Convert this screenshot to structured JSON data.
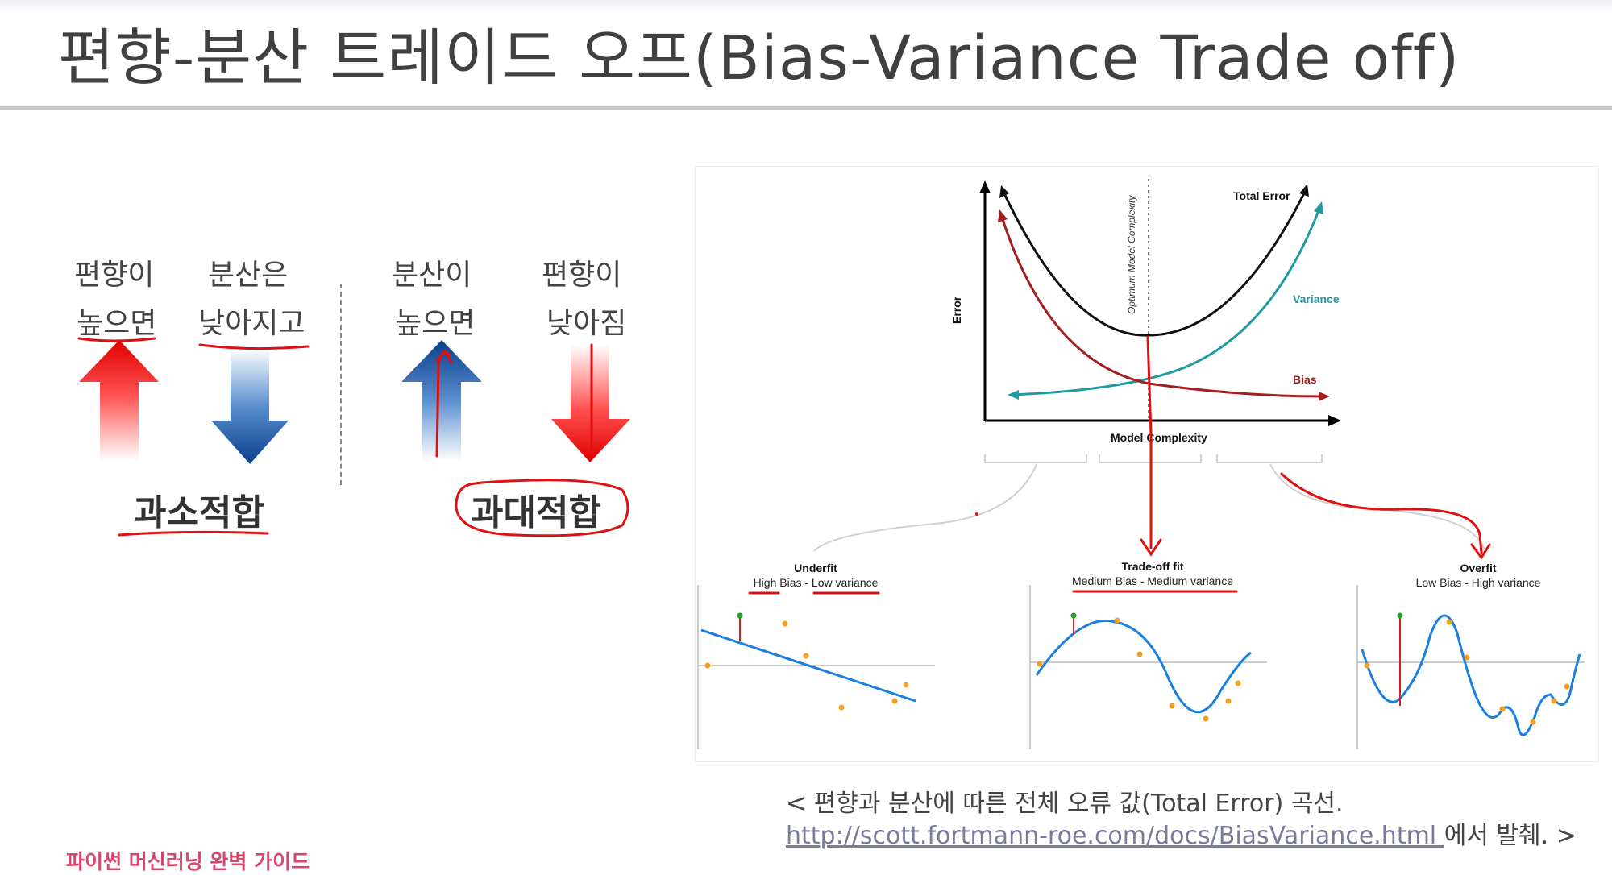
{
  "slide": {
    "title": "편향-분산 트레이드 오프(Bias-Variance Trade off)",
    "footer": "파이썬 머신러닝 완벽 가이드"
  },
  "left_panel": {
    "underfit_group": {
      "col1": [
        "편향이",
        "높으면"
      ],
      "col2": [
        "분산은",
        "낮아지고"
      ],
      "label": "과소적합"
    },
    "overfit_group": {
      "col1": [
        "분산이",
        "높으면"
      ],
      "col2": [
        "편향이",
        "낮아짐"
      ],
      "label": "과대적합"
    }
  },
  "figure": {
    "axis_y": "Error",
    "axis_x": "Model Complexity",
    "optimum_label": "Optimum Model Complexity",
    "curves": {
      "total": "Total Error",
      "variance": "Variance",
      "bias": "Bias"
    },
    "colors": {
      "total": "#111111",
      "variance": "#1f9aa3",
      "bias": "#a31f1f",
      "fit_line": "#1a7fe0",
      "points": "#f5a020",
      "residual": "#d02020",
      "marker": "#20a020",
      "annotation": "#e01010"
    },
    "panels": [
      {
        "title": "Underfit",
        "subtitle": "High Bias - Low variance"
      },
      {
        "title": "Trade-off fit",
        "subtitle": "Medium Bias - Medium variance"
      },
      {
        "title": "Overfit",
        "subtitle": "Low Bias - High variance"
      }
    ]
  },
  "caption": {
    "line1": "< 편향과 분산에 따른 전체 오류 값(Total Error) 곡선.",
    "link": "http://scott.fortmann-roe.com/docs/BiasVariance.html ",
    "line2_suffix": "에서 발췌. >"
  }
}
